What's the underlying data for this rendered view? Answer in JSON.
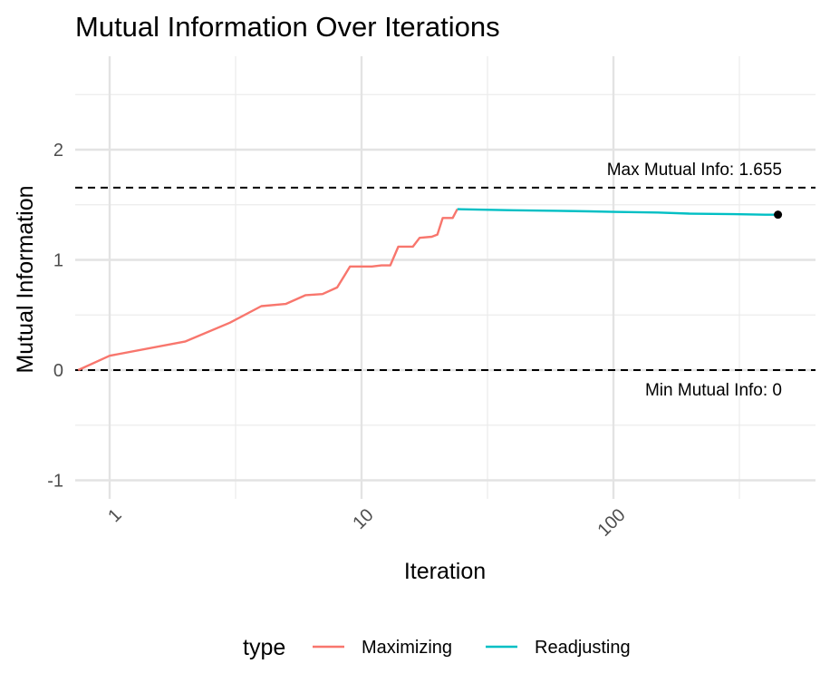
{
  "chart_data": {
    "type": "line",
    "title": "Mutual Information Over Iterations",
    "xlabel": "Iteration",
    "ylabel": "Mutual Information",
    "x_scale": "log10",
    "xlim": [
      0.74,
      520
    ],
    "ylim": [
      -1.1,
      2.6
    ],
    "x_ticks": [
      1,
      10,
      100
    ],
    "x_tick_labels": [
      "1",
      "10",
      "100"
    ],
    "y_ticks": [
      -1,
      0,
      1,
      2
    ],
    "y_tick_labels": [
      "-1",
      "0",
      "1",
      "2"
    ],
    "grid": true,
    "legend": {
      "title": "type",
      "position": "bottom"
    },
    "series": [
      {
        "name": "Maximizing",
        "color": "#F8766D",
        "points": [
          [
            0.75,
            0
          ],
          [
            1,
            0.13
          ],
          [
            2,
            0.26
          ],
          [
            3,
            0.43
          ],
          [
            4,
            0.58
          ],
          [
            5,
            0.6
          ],
          [
            6,
            0.68
          ],
          [
            7,
            0.69
          ],
          [
            8,
            0.75
          ],
          [
            9,
            0.94
          ],
          [
            11,
            0.94
          ],
          [
            12,
            0.95
          ],
          [
            13,
            0.95
          ],
          [
            14,
            1.12
          ],
          [
            16,
            1.12
          ],
          [
            17,
            1.2
          ],
          [
            19,
            1.21
          ],
          [
            20,
            1.23
          ],
          [
            21,
            1.38
          ],
          [
            23,
            1.38
          ],
          [
            24,
            1.46
          ]
        ]
      },
      {
        "name": "Readjusting",
        "color": "#00BFC4",
        "points": [
          [
            24,
            1.46
          ],
          [
            40,
            1.45
          ],
          [
            60,
            1.445
          ],
          [
            80,
            1.44
          ],
          [
            100,
            1.435
          ],
          [
            150,
            1.43
          ],
          [
            200,
            1.42
          ],
          [
            300,
            1.415
          ],
          [
            400,
            1.41
          ],
          [
            450,
            1.41
          ]
        ]
      }
    ],
    "reference_lines": [
      {
        "y": 1.655,
        "label": "Max Mutual Info: 1.655",
        "style": "dashed"
      },
      {
        "y": 0,
        "label": "Min Mutual Info: 0",
        "style": "dashed"
      }
    ],
    "end_point": {
      "x": 450,
      "y": 1.41
    }
  }
}
